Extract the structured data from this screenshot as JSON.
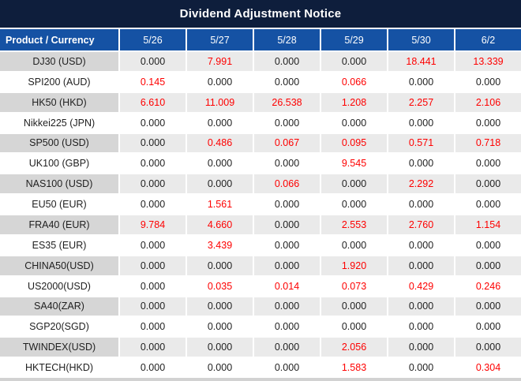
{
  "title": "Dividend Adjustment Notice",
  "table": {
    "product_header": "Product / Currency",
    "date_columns": [
      "5/26",
      "5/27",
      "5/28",
      "5/29",
      "5/30",
      "6/2"
    ],
    "rows": [
      {
        "product": "DJ30 (USD)",
        "values": [
          "0.000",
          "7.991",
          "0.000",
          "0.000",
          "18.441",
          "13.339"
        ]
      },
      {
        "product": "SPI200 (AUD)",
        "values": [
          "0.145",
          "0.000",
          "0.000",
          "0.066",
          "0.000",
          "0.000"
        ]
      },
      {
        "product": "HK50 (HKD)",
        "values": [
          "6.610",
          "11.009",
          "26.538",
          "1.208",
          "2.257",
          "2.106"
        ]
      },
      {
        "product": "Nikkei225 (JPN)",
        "values": [
          "0.000",
          "0.000",
          "0.000",
          "0.000",
          "0.000",
          "0.000"
        ]
      },
      {
        "product": "SP500 (USD)",
        "values": [
          "0.000",
          "0.486",
          "0.067",
          "0.095",
          "0.571",
          "0.718"
        ]
      },
      {
        "product": "UK100 (GBP)",
        "values": [
          "0.000",
          "0.000",
          "0.000",
          "9.545",
          "0.000",
          "0.000"
        ]
      },
      {
        "product": "NAS100 (USD)",
        "values": [
          "0.000",
          "0.000",
          "0.066",
          "0.000",
          "2.292",
          "0.000"
        ]
      },
      {
        "product": "EU50 (EUR)",
        "values": [
          "0.000",
          "1.561",
          "0.000",
          "0.000",
          "0.000",
          "0.000"
        ]
      },
      {
        "product": "FRA40 (EUR)",
        "values": [
          "9.784",
          "4.660",
          "0.000",
          "2.553",
          "2.760",
          "1.154"
        ]
      },
      {
        "product": "ES35 (EUR)",
        "values": [
          "0.000",
          "3.439",
          "0.000",
          "0.000",
          "0.000",
          "0.000"
        ]
      },
      {
        "product": "CHINA50(USD)",
        "values": [
          "0.000",
          "0.000",
          "0.000",
          "1.920",
          "0.000",
          "0.000"
        ]
      },
      {
        "product": "US2000(USD)",
        "values": [
          "0.000",
          "0.035",
          "0.014",
          "0.073",
          "0.429",
          "0.246"
        ]
      },
      {
        "product": "SA40(ZAR)",
        "values": [
          "0.000",
          "0.000",
          "0.000",
          "0.000",
          "0.000",
          "0.000"
        ]
      },
      {
        "product": "SGP20(SGD)",
        "values": [
          "0.000",
          "0.000",
          "0.000",
          "0.000",
          "0.000",
          "0.000"
        ]
      },
      {
        "product": "TWINDEX(USD)",
        "values": [
          "0.000",
          "0.000",
          "0.000",
          "2.056",
          "0.000",
          "0.000"
        ]
      },
      {
        "product": "HKTECH(HKD)",
        "values": [
          "0.000",
          "0.000",
          "0.000",
          "1.583",
          "0.000",
          "0.304"
        ]
      }
    ],
    "zero_value": "0.000"
  },
  "colors": {
    "title_bg": "#0e1e3c",
    "header_bg": "#1552a4",
    "label_alt_bg": "#d6d6d6",
    "value_alt_bg": "#eaeaea",
    "zero_text": "#1f1f1f",
    "nonzero_text": "#fe0000",
    "separator": "#ffffff",
    "bottom_strip": "#d2d2d2"
  }
}
